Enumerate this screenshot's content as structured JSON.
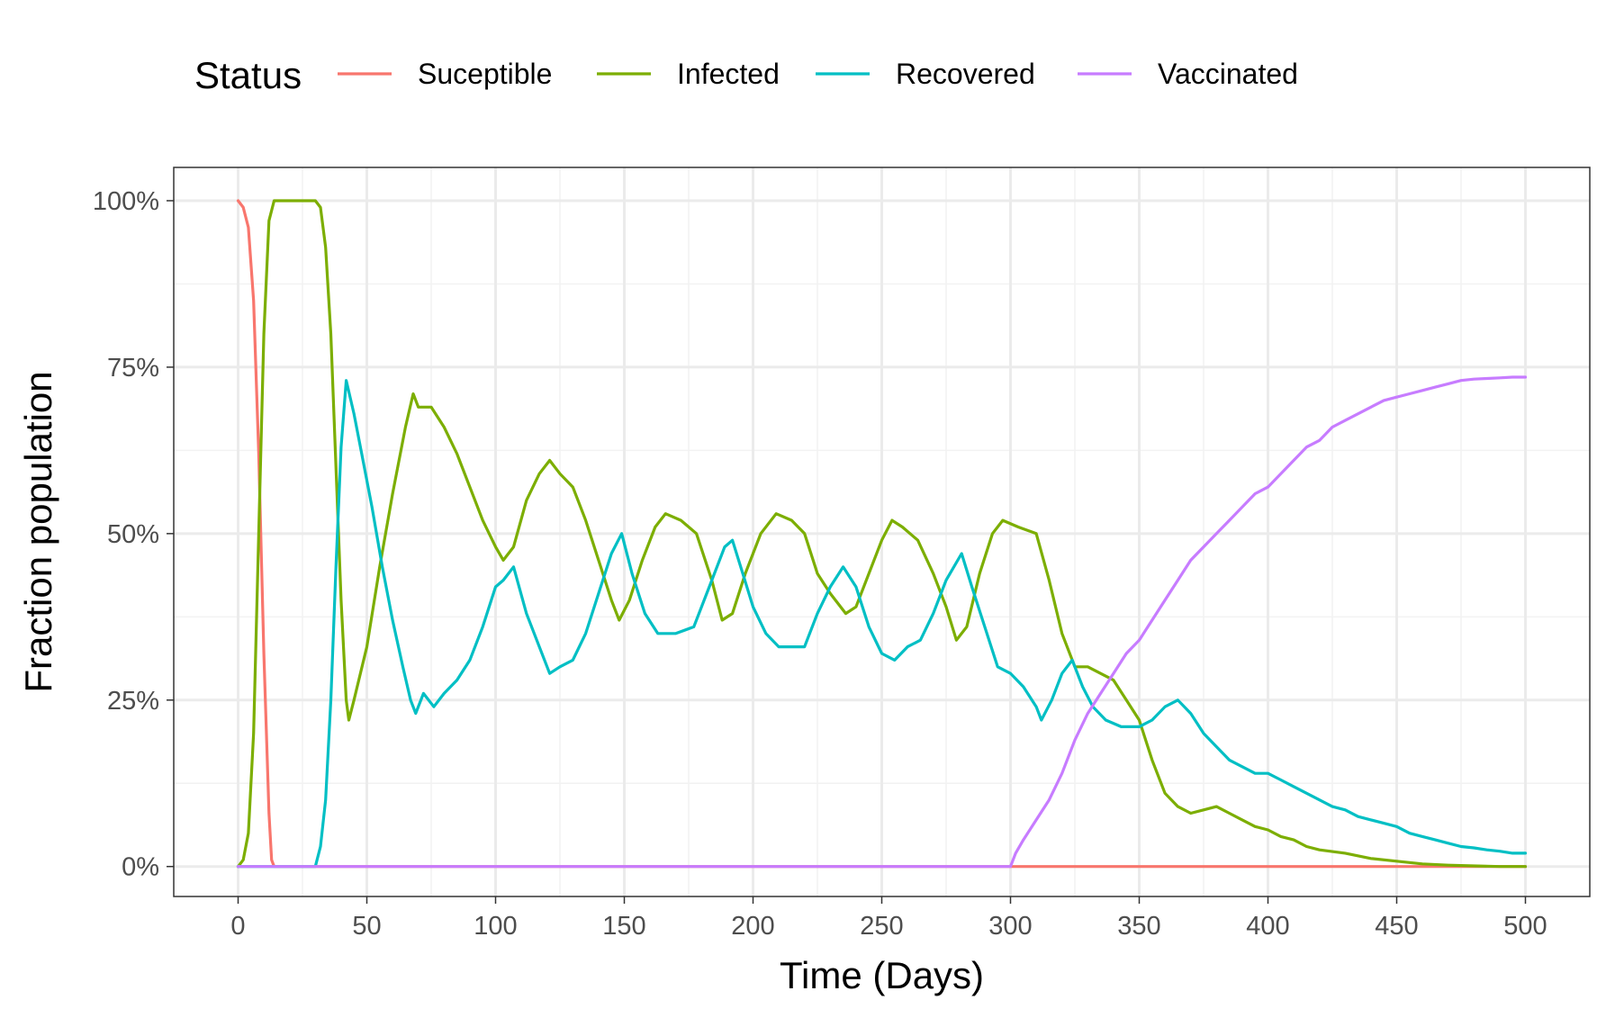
{
  "chart_data": {
    "type": "line",
    "title": "",
    "xlabel": "Time (Days)",
    "ylabel": "Fraction population",
    "xlim": [
      -25,
      525
    ],
    "ylim": [
      -0.045,
      1.05
    ],
    "x_ticks": [
      0,
      50,
      100,
      150,
      200,
      250,
      300,
      350,
      400,
      450,
      500
    ],
    "x_tick_labels": [
      "0",
      "50",
      "100",
      "150",
      "200",
      "250",
      "300",
      "350",
      "400",
      "450",
      "500"
    ],
    "y_ticks": [
      0,
      0.25,
      0.5,
      0.75,
      1.0
    ],
    "y_tick_labels": [
      "0%",
      "25%",
      "50%",
      "75%",
      "100%"
    ],
    "grid": true,
    "legend": {
      "title": "Status",
      "position": "top"
    },
    "series": [
      {
        "name": "Suceptible",
        "color": "#F8766D",
        "points": [
          [
            0,
            1.0
          ],
          [
            2,
            0.99
          ],
          [
            4,
            0.96
          ],
          [
            6,
            0.85
          ],
          [
            8,
            0.62
          ],
          [
            10,
            0.32
          ],
          [
            12,
            0.08
          ],
          [
            13,
            0.01
          ],
          [
            14,
            0.0
          ],
          [
            100,
            0.0
          ],
          [
            200,
            0.0
          ],
          [
            300,
            0.0
          ],
          [
            400,
            0.0
          ],
          [
            500,
            0.0
          ]
        ]
      },
      {
        "name": "Infected",
        "color": "#7CAE00",
        "points": [
          [
            0,
            0.0
          ],
          [
            2,
            0.01
          ],
          [
            4,
            0.05
          ],
          [
            6,
            0.2
          ],
          [
            8,
            0.5
          ],
          [
            10,
            0.8
          ],
          [
            12,
            0.97
          ],
          [
            14,
            1.0
          ],
          [
            20,
            1.0
          ],
          [
            25,
            1.0
          ],
          [
            30,
            1.0
          ],
          [
            32,
            0.99
          ],
          [
            34,
            0.93
          ],
          [
            36,
            0.8
          ],
          [
            38,
            0.6
          ],
          [
            40,
            0.4
          ],
          [
            42,
            0.25
          ],
          [
            43,
            0.22
          ],
          [
            45,
            0.25
          ],
          [
            50,
            0.33
          ],
          [
            55,
            0.45
          ],
          [
            60,
            0.56
          ],
          [
            65,
            0.66
          ],
          [
            68,
            0.71
          ],
          [
            70,
            0.69
          ],
          [
            75,
            0.69
          ],
          [
            80,
            0.66
          ],
          [
            85,
            0.62
          ],
          [
            90,
            0.57
          ],
          [
            95,
            0.52
          ],
          [
            100,
            0.48
          ],
          [
            103,
            0.46
          ],
          [
            107,
            0.48
          ],
          [
            112,
            0.55
          ],
          [
            117,
            0.59
          ],
          [
            121,
            0.61
          ],
          [
            125,
            0.59
          ],
          [
            130,
            0.57
          ],
          [
            135,
            0.52
          ],
          [
            140,
            0.46
          ],
          [
            145,
            0.4
          ],
          [
            148,
            0.37
          ],
          [
            152,
            0.4
          ],
          [
            157,
            0.46
          ],
          [
            162,
            0.51
          ],
          [
            166,
            0.53
          ],
          [
            172,
            0.52
          ],
          [
            178,
            0.5
          ],
          [
            184,
            0.43
          ],
          [
            188,
            0.37
          ],
          [
            192,
            0.38
          ],
          [
            197,
            0.44
          ],
          [
            203,
            0.5
          ],
          [
            209,
            0.53
          ],
          [
            215,
            0.52
          ],
          [
            220,
            0.5
          ],
          [
            225,
            0.44
          ],
          [
            230,
            0.41
          ],
          [
            236,
            0.38
          ],
          [
            240,
            0.39
          ],
          [
            245,
            0.44
          ],
          [
            250,
            0.49
          ],
          [
            254,
            0.52
          ],
          [
            258,
            0.51
          ],
          [
            264,
            0.49
          ],
          [
            270,
            0.44
          ],
          [
            275,
            0.39
          ],
          [
            279,
            0.34
          ],
          [
            283,
            0.36
          ],
          [
            288,
            0.44
          ],
          [
            293,
            0.5
          ],
          [
            297,
            0.52
          ],
          [
            303,
            0.51
          ],
          [
            310,
            0.5
          ],
          [
            315,
            0.43
          ],
          [
            320,
            0.35
          ],
          [
            325,
            0.3
          ],
          [
            330,
            0.3
          ],
          [
            335,
            0.29
          ],
          [
            340,
            0.28
          ],
          [
            345,
            0.25
          ],
          [
            350,
            0.22
          ],
          [
            355,
            0.16
          ],
          [
            360,
            0.11
          ],
          [
            365,
            0.09
          ],
          [
            370,
            0.08
          ],
          [
            375,
            0.085
          ],
          [
            380,
            0.09
          ],
          [
            385,
            0.08
          ],
          [
            390,
            0.07
          ],
          [
            395,
            0.06
          ],
          [
            400,
            0.055
          ],
          [
            405,
            0.045
          ],
          [
            410,
            0.04
          ],
          [
            415,
            0.03
          ],
          [
            420,
            0.025
          ],
          [
            430,
            0.02
          ],
          [
            440,
            0.012
          ],
          [
            450,
            0.008
          ],
          [
            460,
            0.004
          ],
          [
            470,
            0.002
          ],
          [
            480,
            0.001
          ],
          [
            490,
            0.0
          ],
          [
            500,
            0.0
          ]
        ]
      },
      {
        "name": "Recovered",
        "color": "#00BFC4",
        "points": [
          [
            0,
            0.0
          ],
          [
            28,
            0.0
          ],
          [
            30,
            0.0
          ],
          [
            32,
            0.03
          ],
          [
            34,
            0.1
          ],
          [
            36,
            0.25
          ],
          [
            38,
            0.45
          ],
          [
            40,
            0.63
          ],
          [
            42,
            0.73
          ],
          [
            45,
            0.68
          ],
          [
            48,
            0.62
          ],
          [
            52,
            0.54
          ],
          [
            56,
            0.45
          ],
          [
            60,
            0.37
          ],
          [
            64,
            0.3
          ],
          [
            67,
            0.25
          ],
          [
            69,
            0.23
          ],
          [
            72,
            0.26
          ],
          [
            76,
            0.24
          ],
          [
            80,
            0.26
          ],
          [
            85,
            0.28
          ],
          [
            90,
            0.31
          ],
          [
            95,
            0.36
          ],
          [
            100,
            0.42
          ],
          [
            103,
            0.43
          ],
          [
            107,
            0.45
          ],
          [
            112,
            0.38
          ],
          [
            117,
            0.33
          ],
          [
            121,
            0.29
          ],
          [
            125,
            0.3
          ],
          [
            130,
            0.31
          ],
          [
            135,
            0.35
          ],
          [
            140,
            0.41
          ],
          [
            145,
            0.47
          ],
          [
            149,
            0.5
          ],
          [
            153,
            0.44
          ],
          [
            158,
            0.38
          ],
          [
            163,
            0.35
          ],
          [
            170,
            0.35
          ],
          [
            177,
            0.36
          ],
          [
            183,
            0.42
          ],
          [
            189,
            0.48
          ],
          [
            192,
            0.49
          ],
          [
            196,
            0.44
          ],
          [
            200,
            0.39
          ],
          [
            205,
            0.35
          ],
          [
            210,
            0.33
          ],
          [
            215,
            0.33
          ],
          [
            220,
            0.33
          ],
          [
            225,
            0.38
          ],
          [
            230,
            0.42
          ],
          [
            235,
            0.45
          ],
          [
            240,
            0.42
          ],
          [
            245,
            0.36
          ],
          [
            250,
            0.32
          ],
          [
            255,
            0.31
          ],
          [
            260,
            0.33
          ],
          [
            265,
            0.34
          ],
          [
            270,
            0.38
          ],
          [
            275,
            0.43
          ],
          [
            281,
            0.47
          ],
          [
            285,
            0.42
          ],
          [
            290,
            0.36
          ],
          [
            295,
            0.3
          ],
          [
            300,
            0.29
          ],
          [
            305,
            0.27
          ],
          [
            310,
            0.24
          ],
          [
            312,
            0.22
          ],
          [
            316,
            0.25
          ],
          [
            320,
            0.29
          ],
          [
            324,
            0.31
          ],
          [
            328,
            0.27
          ],
          [
            332,
            0.24
          ],
          [
            337,
            0.22
          ],
          [
            343,
            0.21
          ],
          [
            350,
            0.21
          ],
          [
            355,
            0.22
          ],
          [
            360,
            0.24
          ],
          [
            365,
            0.25
          ],
          [
            370,
            0.23
          ],
          [
            375,
            0.2
          ],
          [
            380,
            0.18
          ],
          [
            385,
            0.16
          ],
          [
            390,
            0.15
          ],
          [
            395,
            0.14
          ],
          [
            400,
            0.14
          ],
          [
            405,
            0.13
          ],
          [
            410,
            0.12
          ],
          [
            415,
            0.11
          ],
          [
            420,
            0.1
          ],
          [
            425,
            0.09
          ],
          [
            430,
            0.085
          ],
          [
            435,
            0.075
          ],
          [
            440,
            0.07
          ],
          [
            445,
            0.065
          ],
          [
            450,
            0.06
          ],
          [
            455,
            0.05
          ],
          [
            460,
            0.045
          ],
          [
            465,
            0.04
          ],
          [
            470,
            0.035
          ],
          [
            475,
            0.03
          ],
          [
            480,
            0.028
          ],
          [
            485,
            0.025
          ],
          [
            490,
            0.023
          ],
          [
            495,
            0.02
          ],
          [
            500,
            0.02
          ]
        ]
      },
      {
        "name": "Vaccinated",
        "color": "#C77CFF",
        "points": [
          [
            0,
            0.0
          ],
          [
            100,
            0.0
          ],
          [
            200,
            0.0
          ],
          [
            299,
            0.0
          ],
          [
            300,
            0.0
          ],
          [
            302,
            0.02
          ],
          [
            305,
            0.04
          ],
          [
            310,
            0.07
          ],
          [
            315,
            0.1
          ],
          [
            320,
            0.14
          ],
          [
            325,
            0.19
          ],
          [
            330,
            0.23
          ],
          [
            335,
            0.26
          ],
          [
            340,
            0.29
          ],
          [
            345,
            0.32
          ],
          [
            350,
            0.34
          ],
          [
            355,
            0.37
          ],
          [
            360,
            0.4
          ],
          [
            365,
            0.43
          ],
          [
            370,
            0.46
          ],
          [
            375,
            0.48
          ],
          [
            380,
            0.5
          ],
          [
            385,
            0.52
          ],
          [
            390,
            0.54
          ],
          [
            395,
            0.56
          ],
          [
            400,
            0.57
          ],
          [
            405,
            0.59
          ],
          [
            410,
            0.61
          ],
          [
            415,
            0.63
          ],
          [
            420,
            0.64
          ],
          [
            425,
            0.66
          ],
          [
            430,
            0.67
          ],
          [
            435,
            0.68
          ],
          [
            440,
            0.69
          ],
          [
            445,
            0.7
          ],
          [
            450,
            0.705
          ],
          [
            455,
            0.71
          ],
          [
            460,
            0.715
          ],
          [
            465,
            0.72
          ],
          [
            470,
            0.725
          ],
          [
            475,
            0.73
          ],
          [
            480,
            0.732
          ],
          [
            485,
            0.733
          ],
          [
            490,
            0.734
          ],
          [
            495,
            0.735
          ],
          [
            500,
            0.735
          ]
        ]
      }
    ]
  }
}
